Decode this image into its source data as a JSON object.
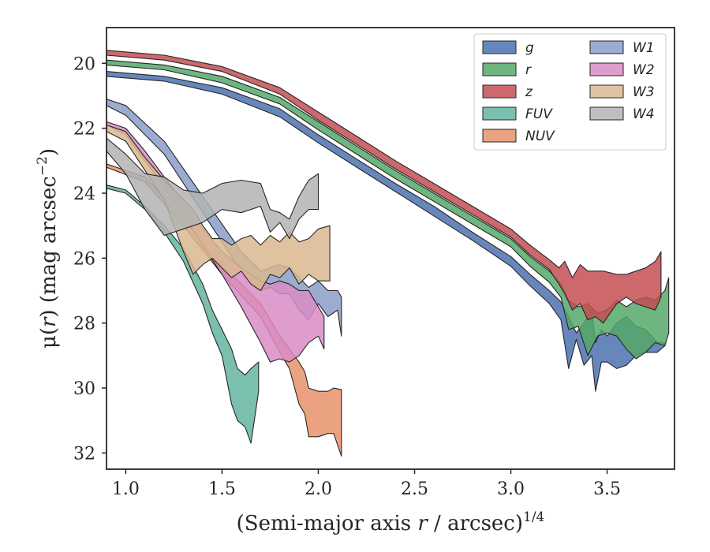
{
  "chart_data": {
    "type": "area",
    "xlabel_main": "(Semi-major axis ",
    "xlabel_var": "r",
    "xlabel_unit": " / arcsec)",
    "xlabel_exp": "1/4",
    "ylabel_main": "μ(",
    "ylabel_var": "r",
    "ylabel_unit": ") (mag arcsec",
    "ylabel_exp": "−2",
    "ylabel_end": ")",
    "xlim": [
      0.9,
      3.85
    ],
    "ylim": [
      32.5,
      18.9
    ],
    "y_inverted": true,
    "xticks": [
      1.0,
      1.5,
      2.0,
      2.5,
      3.0,
      3.5
    ],
    "xtick_labels": [
      "1.0",
      "1.5",
      "2.0",
      "2.5",
      "3.0",
      "3.5"
    ],
    "yticks": [
      20,
      22,
      24,
      26,
      28,
      30,
      32
    ],
    "ytick_labels": [
      "20",
      "22",
      "24",
      "26",
      "28",
      "30",
      "32"
    ],
    "grid": false,
    "legend_position": "top-right",
    "legend_columns": 2,
    "series": [
      {
        "name": "g",
        "color": "#4c72b0",
        "x": [
          0.9,
          1.2,
          1.5,
          1.8,
          2.0,
          2.2,
          2.4,
          2.6,
          2.8,
          3.0,
          3.1,
          3.2,
          3.26,
          3.3,
          3.34,
          3.38,
          3.42,
          3.44,
          3.47,
          3.5,
          3.55,
          3.6,
          3.65,
          3.7,
          3.76,
          3.8
        ],
        "lo": [
          20.25,
          20.4,
          20.75,
          21.4,
          22.2,
          22.95,
          23.7,
          24.4,
          25.2,
          25.95,
          26.5,
          27.0,
          27.35,
          27.8,
          28.3,
          28.0,
          27.6,
          28.6,
          28.2,
          28.4,
          28.0,
          27.8,
          28.1,
          28.2,
          28.6,
          28.6
        ],
        "hi": [
          20.4,
          20.55,
          20.95,
          21.65,
          22.45,
          23.2,
          23.95,
          24.7,
          25.45,
          26.25,
          26.85,
          27.4,
          27.9,
          29.4,
          28.5,
          29.3,
          29.0,
          30.1,
          29.2,
          29.2,
          29.4,
          29.3,
          29.0,
          28.9,
          28.9,
          28.7
        ]
      },
      {
        "name": "r",
        "color": "#55a868",
        "x": [
          0.9,
          1.2,
          1.5,
          1.8,
          2.0,
          2.2,
          2.4,
          2.6,
          2.8,
          3.0,
          3.1,
          3.2,
          3.26,
          3.3,
          3.35,
          3.4,
          3.45,
          3.5,
          3.55,
          3.6,
          3.65,
          3.7,
          3.75,
          3.8,
          3.82
        ],
        "lo": [
          19.9,
          20.05,
          20.4,
          21.05,
          21.8,
          22.55,
          23.3,
          24.0,
          24.7,
          25.4,
          25.95,
          26.4,
          26.8,
          27.3,
          27.5,
          27.4,
          27.7,
          27.6,
          27.3,
          27.5,
          27.3,
          27.2,
          27.3,
          27.0,
          26.6
        ],
        "hi": [
          20.05,
          20.2,
          20.6,
          21.25,
          22.05,
          22.8,
          23.55,
          24.25,
          24.95,
          25.65,
          26.25,
          26.75,
          27.2,
          28.2,
          28.1,
          29.0,
          28.4,
          28.3,
          28.4,
          28.8,
          29.1,
          28.9,
          28.6,
          28.7,
          28.3
        ]
      },
      {
        "name": "z",
        "color": "#c44e52",
        "x": [
          0.9,
          1.2,
          1.5,
          1.8,
          2.0,
          2.2,
          2.4,
          2.6,
          2.8,
          3.0,
          3.1,
          3.2,
          3.25,
          3.28,
          3.32,
          3.36,
          3.4,
          3.44,
          3.48,
          3.55,
          3.6,
          3.65,
          3.7,
          3.75,
          3.78
        ],
        "lo": [
          19.6,
          19.75,
          20.1,
          20.75,
          21.5,
          22.25,
          23.0,
          23.7,
          24.4,
          25.1,
          25.6,
          26.05,
          26.3,
          26.1,
          26.6,
          26.2,
          26.4,
          26.4,
          26.4,
          26.5,
          26.5,
          26.4,
          26.3,
          26.1,
          25.8
        ],
        "hi": [
          19.75,
          19.9,
          20.25,
          20.95,
          21.75,
          22.5,
          23.25,
          23.95,
          24.65,
          25.35,
          25.9,
          26.35,
          26.8,
          27.1,
          27.6,
          27.4,
          27.9,
          27.8,
          28.0,
          27.4,
          27.2,
          27.4,
          27.5,
          27.6,
          27.2
        ]
      },
      {
        "name": "FUV",
        "color": "#64b5a0",
        "x": [
          0.9,
          1.0,
          1.1,
          1.2,
          1.3,
          1.4,
          1.45,
          1.5,
          1.55,
          1.58,
          1.62,
          1.65,
          1.69
        ],
        "lo": [
          23.75,
          23.9,
          24.4,
          25.0,
          25.7,
          26.8,
          27.6,
          28.2,
          28.8,
          29.4,
          29.6,
          29.4,
          29.2
        ],
        "hi": [
          23.85,
          24.0,
          24.5,
          25.2,
          26.1,
          27.4,
          28.3,
          29.0,
          30.5,
          31.0,
          31.2,
          31.7,
          30.1
        ]
      },
      {
        "name": "NUV",
        "color": "#e8926b",
        "x": [
          0.9,
          1.1,
          1.3,
          1.5,
          1.7,
          1.8,
          1.85,
          1.9,
          1.93,
          1.95,
          2.0,
          2.05,
          2.08,
          2.12
        ],
        "lo": [
          23.1,
          23.5,
          24.8,
          26.2,
          27.4,
          28.4,
          28.8,
          29.2,
          29.5,
          30.0,
          30.1,
          30.1,
          30.0,
          30.05
        ],
        "hi": [
          23.2,
          23.65,
          25.0,
          26.5,
          27.8,
          28.9,
          29.4,
          30.5,
          30.8,
          31.5,
          31.5,
          31.4,
          31.4,
          32.1
        ]
      },
      {
        "name": "W1",
        "color": "#8b9cc8",
        "x": [
          0.9,
          1.0,
          1.2,
          1.4,
          1.6,
          1.7,
          1.75,
          1.8,
          1.85,
          1.9,
          1.95,
          2.0,
          2.05,
          2.1,
          2.12
        ],
        "lo": [
          21.1,
          21.3,
          22.4,
          24.1,
          25.8,
          26.4,
          26.3,
          26.2,
          26.3,
          26.6,
          26.9,
          26.7,
          27.0,
          27.0,
          27.2
        ],
        "hi": [
          21.3,
          21.6,
          22.8,
          24.6,
          26.4,
          27.0,
          26.9,
          27.1,
          27.1,
          27.6,
          27.9,
          27.4,
          27.8,
          27.6,
          28.4
        ]
      },
      {
        "name": "W2",
        "color": "#d98cc4",
        "x": [
          0.9,
          1.0,
          1.1,
          1.2,
          1.3,
          1.4,
          1.5,
          1.6,
          1.7,
          1.75,
          1.8,
          1.85,
          1.9,
          1.95,
          2.0,
          2.03
        ],
        "lo": [
          21.8,
          22.0,
          22.7,
          23.5,
          24.3,
          25.1,
          25.8,
          26.3,
          26.7,
          26.8,
          26.7,
          26.8,
          27.0,
          27.0,
          27.5,
          27.8
        ],
        "hi": [
          21.9,
          22.2,
          23.0,
          23.8,
          24.7,
          25.6,
          26.5,
          27.5,
          28.6,
          29.2,
          29.1,
          29.2,
          29.0,
          28.6,
          28.4,
          28.8
        ]
      },
      {
        "name": "W3",
        "color": "#d9b98f",
        "x": [
          0.9,
          1.0,
          1.1,
          1.2,
          1.3,
          1.35,
          1.4,
          1.45,
          1.5,
          1.55,
          1.6,
          1.65,
          1.7,
          1.75,
          1.8,
          1.85,
          1.9,
          1.95,
          2.0,
          2.06
        ],
        "lo": [
          21.9,
          22.1,
          22.9,
          23.6,
          24.2,
          24.5,
          25.0,
          25.4,
          25.4,
          25.6,
          25.4,
          25.3,
          25.6,
          25.3,
          25.5,
          25.2,
          25.5,
          25.4,
          25.1,
          25.0
        ],
        "hi": [
          22.1,
          22.4,
          23.3,
          24.2,
          25.8,
          26.5,
          26.2,
          26.0,
          26.3,
          26.6,
          26.4,
          26.8,
          27.0,
          26.5,
          26.6,
          26.3,
          26.8,
          26.5,
          26.7,
          26.7
        ]
      },
      {
        "name": "W4",
        "color": "#b3b3b3",
        "x": [
          0.9,
          1.0,
          1.1,
          1.2,
          1.3,
          1.4,
          1.5,
          1.6,
          1.7,
          1.75,
          1.8,
          1.85,
          1.9,
          1.95,
          2.0
        ],
        "lo": [
          22.3,
          22.8,
          23.4,
          23.5,
          23.9,
          24.0,
          23.7,
          23.6,
          23.7,
          24.5,
          24.6,
          24.8,
          24.1,
          23.6,
          23.4
        ],
        "hi": [
          22.7,
          23.4,
          24.5,
          25.3,
          25.1,
          24.9,
          24.5,
          24.6,
          24.4,
          25.2,
          24.9,
          25.4,
          24.8,
          24.5,
          24.5
        ]
      }
    ]
  }
}
